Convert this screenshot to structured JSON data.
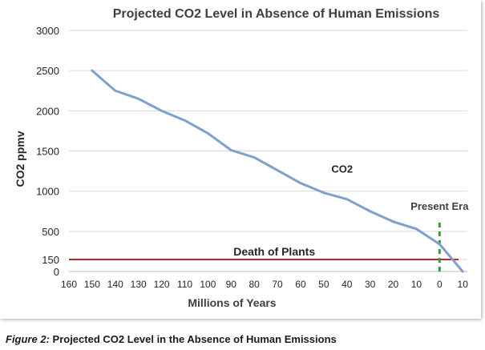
{
  "chart_data": {
    "type": "line",
    "title": "Projected CO2 Level in Absence of Human Emissions",
    "xlabel": "Millions of Years",
    "ylabel": "CO2 ppmv",
    "xlim": [
      -160,
      12
    ],
    "ylim": [
      0,
      3000
    ],
    "x_ticks": [
      -160,
      -150,
      -140,
      -130,
      -120,
      -110,
      -100,
      -90,
      -80,
      -70,
      -60,
      -50,
      -40,
      -30,
      -20,
      -10,
      0,
      10
    ],
    "x_tick_labels": [
      "160",
      "150",
      "140",
      "130",
      "120",
      "110",
      "100",
      "90",
      "80",
      "70",
      "60",
      "50",
      "40",
      "30",
      "20",
      "10",
      "0",
      "10"
    ],
    "y_ticks": [
      0,
      150,
      500,
      1000,
      1500,
      2000,
      2500,
      3000
    ],
    "y_tick_labels": [
      "0",
      "150",
      "500",
      "1000",
      "1500",
      "2000",
      "2500",
      "3000"
    ],
    "grid": true,
    "series": [
      {
        "name": "CO2",
        "color": "#7f9fd0",
        "x": [
          -150,
          -140,
          -130,
          -120,
          -110,
          -100,
          -90,
          -80,
          -70,
          -60,
          -50,
          -40,
          -30,
          -20,
          -10,
          0,
          10
        ],
        "y": [
          2500,
          2250,
          2150,
          2000,
          1880,
          1720,
          1510,
          1420,
          1260,
          1100,
          980,
          900,
          750,
          620,
          530,
          340,
          0
        ]
      }
    ],
    "reference_lines": [
      {
        "orientation": "horizontal",
        "value": 150,
        "label": "Death of Plants",
        "color": "#c0262a"
      },
      {
        "orientation": "vertical",
        "value": 0,
        "label": "Present Era",
        "color": "#2e9e3a",
        "from": 0,
        "to": 650
      }
    ],
    "annotations": [
      {
        "text": "CO2",
        "x": -40,
        "y": 1230
      }
    ]
  },
  "caption": {
    "lead": "Figure 2:",
    "text": " Projected CO2 Level in the Absence of Human Emissions"
  }
}
